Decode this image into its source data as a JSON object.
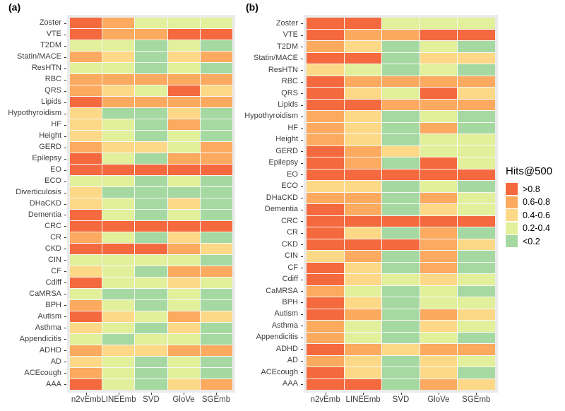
{
  "chart_data": {
    "type": "heatmap",
    "legend": {
      "title": "Hits@500",
      "position": "right",
      "levels": [
        {
          "value": 5,
          "label": ">0.8",
          "color": "#F4693E"
        },
        {
          "value": 4,
          "label": "0.6-0.8",
          "color": "#FCAA5F"
        },
        {
          "value": 3,
          "label": "0.4-0.6",
          "color": "#FDD987"
        },
        {
          "value": 2,
          "label": "0.2-0.4",
          "color": "#E2F09B"
        },
        {
          "value": 1,
          "label": "<0.2",
          "color": "#A6D9A1"
        }
      ]
    },
    "columns": [
      "n2vEmb",
      "LINEEmb",
      "SVD",
      "GloVe",
      "SGEmb"
    ],
    "panels": [
      {
        "label": "(a)",
        "rows": [
          "Zoster",
          "VTE",
          "T2DM",
          "Statin/MACE",
          "ResHTN",
          "RBC",
          "QRS",
          "Lipids",
          "Hypothyroidism",
          "HF",
          "Height",
          "GERD",
          "Epilepsy",
          "EO",
          "ECO",
          "Diverticulosis",
          "DHaCKD",
          "Dementia",
          "CRC",
          "CR",
          "CKD",
          "CIN",
          "CF",
          "Cdiff",
          "CaMRSA",
          "BPH",
          "Autism",
          "Asthma",
          "Appendicitis",
          "ADHD",
          "AD",
          "ACEcough",
          "AAA"
        ],
        "values": [
          [
            5,
            4,
            2,
            2,
            2
          ],
          [
            5,
            4,
            4,
            5,
            5
          ],
          [
            2,
            2,
            1,
            2,
            1
          ],
          [
            4,
            3,
            1,
            3,
            4
          ],
          [
            2,
            2,
            1,
            2,
            1
          ],
          [
            4,
            4,
            4,
            4,
            4
          ],
          [
            4,
            3,
            2,
            5,
            3
          ],
          [
            5,
            4,
            4,
            4,
            4
          ],
          [
            3,
            1,
            1,
            3,
            1
          ],
          [
            3,
            2,
            1,
            4,
            1
          ],
          [
            3,
            2,
            1,
            2,
            1
          ],
          [
            4,
            3,
            3,
            2,
            4
          ],
          [
            5,
            2,
            1,
            4,
            4
          ],
          [
            5,
            5,
            5,
            5,
            5
          ],
          [
            2,
            2,
            1,
            2,
            1
          ],
          [
            3,
            1,
            1,
            1,
            1
          ],
          [
            3,
            2,
            1,
            3,
            1
          ],
          [
            5,
            2,
            1,
            2,
            1
          ],
          [
            5,
            5,
            5,
            5,
            5
          ],
          [
            4,
            2,
            1,
            3,
            1
          ],
          [
            5,
            5,
            5,
            4,
            3
          ],
          [
            2,
            2,
            2,
            2,
            1
          ],
          [
            3,
            2,
            1,
            4,
            4
          ],
          [
            5,
            2,
            2,
            3,
            2
          ],
          [
            2,
            1,
            1,
            2,
            1
          ],
          [
            4,
            2,
            1,
            2,
            1
          ],
          [
            5,
            3,
            2,
            4,
            3
          ],
          [
            3,
            2,
            1,
            3,
            1
          ],
          [
            2,
            1,
            2,
            2,
            1
          ],
          [
            4,
            3,
            3,
            4,
            4
          ],
          [
            3,
            2,
            1,
            2,
            1
          ],
          [
            4,
            2,
            1,
            2,
            1
          ],
          [
            5,
            2,
            1,
            3,
            4
          ]
        ]
      },
      {
        "label": "(b)",
        "rows": [
          "Zoster",
          "VTE",
          "T2DM",
          "Statin/MACE",
          "ResHTN",
          "RBC",
          "QRS",
          "Lipids",
          "Hypothyroidism",
          "HF",
          "Height",
          "GERD",
          "Epilepsy",
          "EO",
          "ECO",
          "DHaCKD",
          "Dementia",
          "CRC",
          "CR",
          "CKD",
          "CIN",
          "CF",
          "Cdiff",
          "CaMRSA",
          "BPH",
          "Autism",
          "Asthma",
          "Appendicitis",
          "ADHD",
          "AD",
          "ACEcough",
          "AAA"
        ],
        "values": [
          [
            5,
            5,
            2,
            2,
            2
          ],
          [
            5,
            4,
            4,
            5,
            5
          ],
          [
            4,
            3,
            1,
            2,
            1
          ],
          [
            5,
            5,
            1,
            3,
            3
          ],
          [
            3,
            2,
            1,
            2,
            1
          ],
          [
            5,
            4,
            4,
            4,
            4
          ],
          [
            5,
            3,
            2,
            5,
            3
          ],
          [
            5,
            5,
            4,
            4,
            4
          ],
          [
            4,
            3,
            1,
            2,
            1
          ],
          [
            4,
            3,
            1,
            4,
            1
          ],
          [
            4,
            3,
            1,
            2,
            2
          ],
          [
            5,
            4,
            3,
            2,
            2
          ],
          [
            5,
            4,
            1,
            5,
            2
          ],
          [
            5,
            5,
            5,
            5,
            5
          ],
          [
            3,
            3,
            1,
            2,
            1
          ],
          [
            4,
            4,
            1,
            4,
            2
          ],
          [
            5,
            4,
            1,
            3,
            2
          ],
          [
            5,
            5,
            5,
            5,
            5
          ],
          [
            5,
            3,
            1,
            4,
            1
          ],
          [
            5,
            5,
            5,
            4,
            3
          ],
          [
            3,
            4,
            1,
            4,
            1
          ],
          [
            5,
            3,
            1,
            4,
            1
          ],
          [
            5,
            3,
            2,
            3,
            2
          ],
          [
            4,
            2,
            1,
            2,
            1
          ],
          [
            5,
            3,
            1,
            2,
            2
          ],
          [
            5,
            4,
            1,
            4,
            3
          ],
          [
            4,
            2,
            1,
            3,
            2
          ],
          [
            4,
            2,
            1,
            2,
            1
          ],
          [
            5,
            4,
            3,
            4,
            4
          ],
          [
            4,
            3,
            1,
            3,
            2
          ],
          [
            5,
            3,
            1,
            3,
            1
          ],
          [
            5,
            5,
            1,
            4,
            3
          ]
        ]
      }
    ],
    "style": {
      "panel_background": "#EBEBEB",
      "grid_gap_color": "#F7F7F7",
      "axis_text_color": "#3f3f3f"
    }
  }
}
